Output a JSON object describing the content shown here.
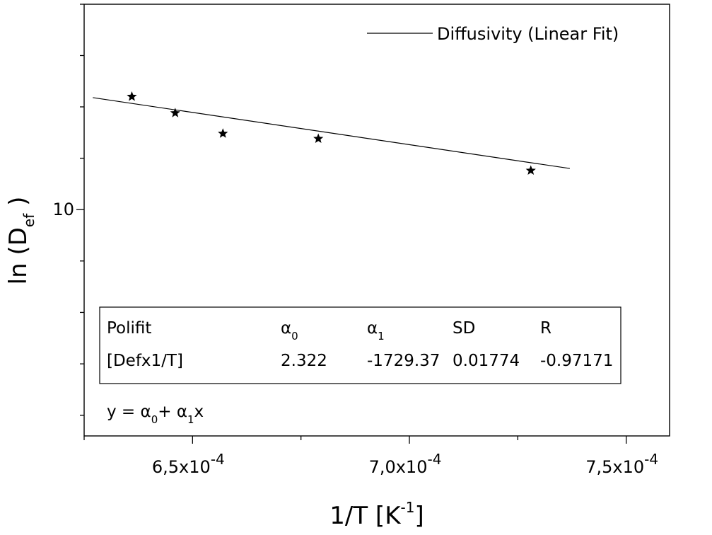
{
  "chart_data": {
    "type": "scatter",
    "xlabel": "1/T [K",
    "xlabel_sup": "-1",
    "xlabel_close": "]",
    "ylabel": "ln (D",
    "ylabel_sub": "ef",
    "ylabel_close": " )",
    "x_ticks": [
      {
        "value": 0.00065,
        "mantissa": "6,5x10",
        "exp": "-4"
      },
      {
        "value": 0.0007,
        "mantissa": "7,0x10",
        "exp": "-4"
      },
      {
        "value": 0.00075,
        "mantissa": "7,5x10",
        "exp": "-4"
      }
    ],
    "y_ticks": [
      {
        "value": 10,
        "label": "10"
      }
    ],
    "xlim": [
      0.000625,
      0.00076
    ],
    "ylim": [
      9.978,
      10.02
    ],
    "y_scale": "log",
    "series": [
      {
        "name": "Diffusivity (Linear Fit)",
        "kind": "line",
        "x": [
          0.000627,
          0.000737
        ],
        "y": [
          10.0109,
          10.004
        ]
      },
      {
        "kind": "scatter",
        "marker": "star",
        "x": [
          0.000636,
          0.000646,
          0.000657,
          0.000679,
          0.000728
        ],
        "y": [
          10.011,
          10.0094,
          10.0074,
          10.0069,
          10.0038
        ]
      }
    ],
    "legend_placement": "top-right",
    "grid": false
  },
  "fit_table": {
    "headers": {
      "model": "Polifit",
      "a0_symbol": "α",
      "a0_sub": "0",
      "a1_symbol": "α",
      "a1_sub": "1",
      "sd": "SD",
      "r": "R"
    },
    "row": {
      "model": "[Defx1/T]",
      "a0": "2.322",
      "a1": "-1729.37",
      "sd": "0.01774",
      "r": "-0.97171"
    },
    "equation": {
      "lhs": "y = ",
      "a0_symbol": "α",
      "a0_sub": "0",
      "plus": "+ ",
      "a1_symbol": "α",
      "a1_sub": "1",
      "var": "x"
    }
  },
  "colors": {
    "ink": "#000000",
    "background": "#ffffff"
  }
}
